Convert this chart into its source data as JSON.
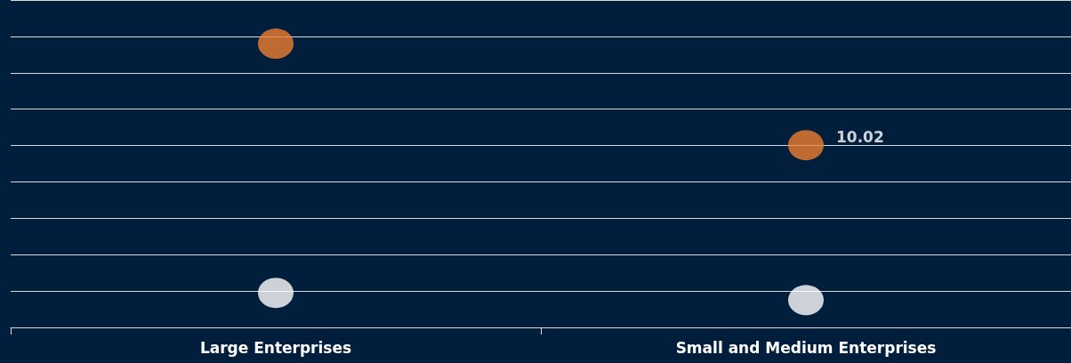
{
  "chart_data": {
    "type": "scatter",
    "categories": [
      "Large Enterprises",
      "Small and Medium Enterprises"
    ],
    "series": [
      {
        "color": "#ed7d31",
        "values": [
          15.6,
          10.02
        ],
        "value_labels": [
          null,
          "10.02"
        ]
      },
      {
        "color": "#ffffff",
        "values": [
          1.9,
          1.5
        ]
      }
    ],
    "ylim": [
      0,
      18
    ],
    "yticks": [
      {
        "value": 0,
        "label": null
      },
      {
        "value": 2,
        "label": null
      },
      {
        "value": 4,
        "label": null
      },
      {
        "value": 6,
        "label": null
      },
      {
        "value": 8,
        "label": null
      },
      {
        "value": 10,
        "label": null
      },
      {
        "value": 12,
        "label": null
      },
      {
        "value": 14,
        "label": null
      },
      {
        "value": 16,
        "label": null
      },
      {
        "value": 18,
        "label": null
      }
    ],
    "tick_labels": "x",
    "grid": "y",
    "marker": "circle"
  }
}
